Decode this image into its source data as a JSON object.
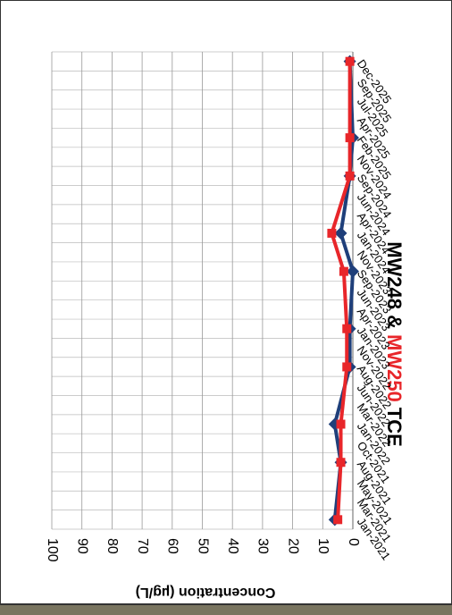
{
  "chart_data": {
    "type": "line",
    "title_segments": [
      "MW248 &",
      "MW250",
      "TCE"
    ],
    "y_label": "Concentration (µg/L)",
    "categories": [
      "Jan-2021",
      "Mar-2021",
      "May-2021",
      "Aug-2021",
      "Oct-2021",
      "Jan-2022",
      "Mar-2022",
      "Jun-2022",
      "Aug-2022",
      "Nov-2022",
      "Jan-2023",
      "Apr-2023",
      "Jun-2023",
      "Sep-2023",
      "Nov-2023",
      "Jan-2024",
      "Apr-2024",
      "Jun-2024",
      "Sep-2024",
      "Nov-2024",
      "Feb-2025",
      "Apr-2025",
      "Jul-2025",
      "Sep-2025",
      "Dec-2025"
    ],
    "series": [
      {
        "name": "MW248",
        "color": "#1f3f7a",
        "marker": "diamond",
        "x": [
          "Jan-2021",
          "Aug-2021",
          "Jan-2022",
          "Aug-2022",
          "Jan-2023",
          "Sep-2023",
          "Jan-2024",
          "Sep-2024",
          "Feb-2025",
          "Dec-2025"
        ],
        "values": [
          6,
          4,
          6,
          1,
          1,
          0,
          4,
          1,
          0,
          1
        ]
      },
      {
        "name": "MW250",
        "color": "#e8262a",
        "marker": "square",
        "x": [
          "Jan-2021",
          "Aug-2021",
          "Jan-2022",
          "Aug-2022",
          "Jan-2023",
          "Sep-2023",
          "Jan-2024",
          "Sep-2024",
          "Feb-2025",
          "Dec-2025"
        ],
        "values": [
          5,
          4,
          4,
          2,
          2,
          3,
          7,
          1,
          1,
          1
        ]
      }
    ],
    "ylim": [
      0,
      100
    ],
    "yticks": [
      0,
      10,
      20,
      30,
      40,
      50,
      60,
      70,
      80,
      90,
      100
    ],
    "grid": true
  }
}
